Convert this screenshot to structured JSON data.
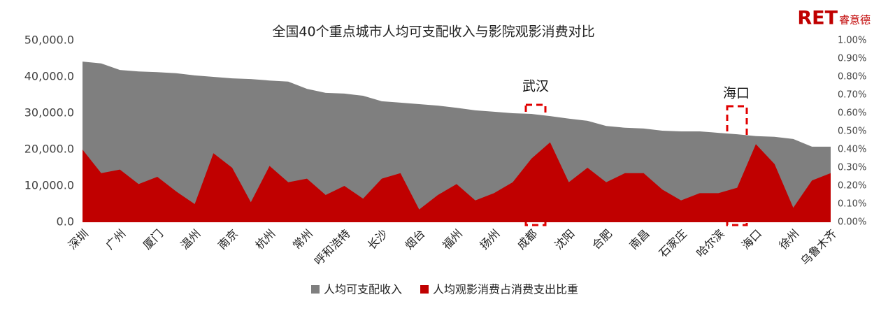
{
  "chart_data": {
    "type": "area",
    "title": "全国40个重点城市人均可支配收入与影院观影消费对比",
    "logo": "RET",
    "logo_sub": "睿意德",
    "annotations": [
      "武汉",
      "海口"
    ],
    "categories": [
      "深圳",
      null,
      "广州",
      null,
      "厦门",
      null,
      "温州",
      null,
      "南京",
      null,
      "杭州",
      null,
      "常州",
      null,
      "呼和浩特",
      null,
      "长沙",
      null,
      "烟台",
      null,
      "福州",
      null,
      "扬州",
      null,
      "成都",
      null,
      "沈阳",
      null,
      "合肥",
      null,
      "南昌",
      null,
      "石家庄",
      null,
      "哈尔滨",
      null,
      "海口",
      null,
      "徐州",
      null,
      "乌鲁木齐"
    ],
    "series": [
      {
        "name": "人均可支配收入",
        "color": "#7f7f7f",
        "values": [
          44200,
          43700,
          41900,
          41500,
          41300,
          41000,
          40400,
          40000,
          39600,
          39400,
          39000,
          38700,
          36700,
          35600,
          35400,
          34800,
          33300,
          32900,
          32500,
          32100,
          31500,
          30800,
          30400,
          30000,
          29800,
          29200,
          28500,
          27900,
          26500,
          26000,
          25800,
          25200,
          25000,
          25000,
          24600,
          24200,
          23700,
          23500,
          22900,
          20800,
          20800
        ]
      },
      {
        "name": "人均观影消费占消费支出比重",
        "color": "#c00000",
        "axis": "y2",
        "values": [
          0.4,
          0.27,
          0.29,
          0.21,
          0.25,
          0.17,
          0.1,
          0.38,
          0.3,
          0.11,
          0.31,
          0.22,
          0.24,
          0.15,
          0.2,
          0.13,
          0.24,
          0.27,
          0.07,
          0.15,
          0.21,
          0.12,
          0.16,
          0.22,
          0.35,
          0.44,
          0.22,
          0.3,
          0.22,
          0.27,
          0.27,
          0.18,
          0.12,
          0.16,
          0.16,
          0.19,
          0.43,
          0.32,
          0.08,
          0.23,
          0.27
        ]
      }
    ],
    "ylim": [
      0,
      50000
    ],
    "yticks": [
      {
        "value": 0,
        "label": "0.0"
      },
      {
        "value": 10000,
        "label": "10,000.0"
      },
      {
        "value": 20000,
        "label": "20,000.0"
      },
      {
        "value": 30000,
        "label": "30,000.0"
      },
      {
        "value": 40000,
        "label": "40,000.0"
      },
      {
        "value": 50000,
        "label": "50,000.0"
      }
    ],
    "y2lim": [
      0,
      1.0
    ],
    "y2ticks": [
      {
        "value": 0,
        "label": "0.00%"
      },
      {
        "value": 0.1,
        "label": "0.10%"
      },
      {
        "value": 0.2,
        "label": "0.20%"
      },
      {
        "value": 0.3,
        "label": "0.30%"
      },
      {
        "value": 0.4,
        "label": "0.40%"
      },
      {
        "value": 0.5,
        "label": "0.50%"
      },
      {
        "value": 0.6,
        "label": "0.60%"
      },
      {
        "value": 0.7,
        "label": "0.70%"
      },
      {
        "value": 0.8,
        "label": "0.80%"
      },
      {
        "value": 0.9,
        "label": "0.90%"
      },
      {
        "value": 1.0,
        "label": "1.00%"
      }
    ],
    "legend": "bottom"
  }
}
